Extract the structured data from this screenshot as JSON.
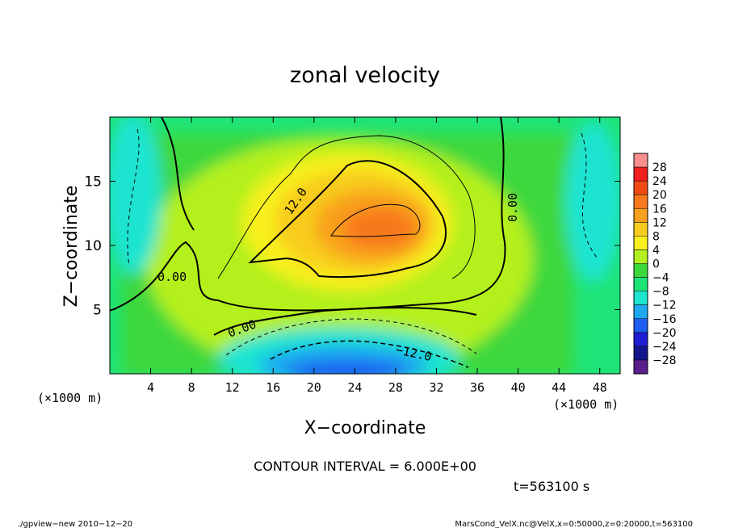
{
  "chart_data": {
    "type": "heatmap",
    "title": "zonal velocity",
    "xlabel": "X−coordinate",
    "ylabel": "Z−coordinate",
    "x_unit": "(×1000 m)",
    "y_unit": "(×1000 m)",
    "xlim": [
      0,
      50
    ],
    "ylim": [
      0,
      20
    ],
    "x_ticks": [
      4,
      8,
      12,
      16,
      20,
      24,
      28,
      32,
      36,
      40,
      44,
      48
    ],
    "y_ticks": [
      5,
      10,
      15
    ],
    "colorbar": {
      "labels": [
        "28",
        "24",
        "20",
        "16",
        "12",
        "8",
        "4",
        "0",
        "−4",
        "−8",
        "−12",
        "−16",
        "−20",
        "−24",
        "−28"
      ],
      "colors": [
        "#f88e8e",
        "#f01e1e",
        "#f04a14",
        "#f8781e",
        "#f8a01e",
        "#f8cc1e",
        "#f8f01e",
        "#b4f01e",
        "#3cd83c",
        "#1ee478",
        "#1ee4d0",
        "#1ea8f0",
        "#1e5ef0",
        "#1e1ed4",
        "#14148c",
        "#5a1e8c"
      ]
    },
    "field_features": [
      {
        "x": 26,
        "z": 11.5,
        "value": 20,
        "label": "jet maximum"
      },
      {
        "x": 24,
        "z": 0.8,
        "value": -20,
        "label": "surface minimum"
      }
    ],
    "contour_labels": [
      "12.0",
      "0.00",
      "0.00",
      "0.00",
      "−12.0"
    ],
    "contour_interval_label": "CONTOUR INTERVAL = 6.000E+00",
    "time_label": "t=563100 s"
  },
  "footer": {
    "left": "./gpview−new   2010−12−20",
    "right": "MarsCond_VelX.nc@VelX,x=0:50000,z=0:20000,t=563100"
  }
}
